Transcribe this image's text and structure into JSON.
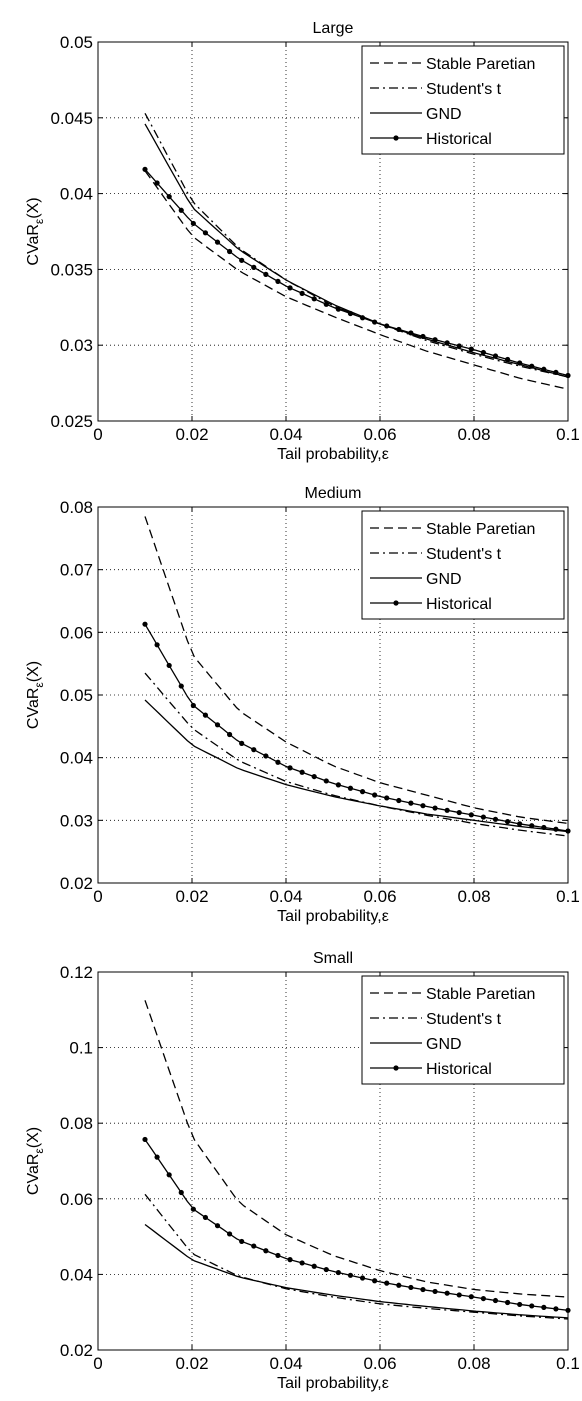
{
  "chart_data": [
    {
      "type": "line",
      "title": "Large",
      "xlabel": "Tail probability,ε",
      "ylabel_main": "CVaR",
      "ylabel_sub": "ε",
      "ylabel_tail": "(X)",
      "xlim": [
        0,
        0.1
      ],
      "ylim": [
        0.025,
        0.05
      ],
      "xticks": [
        0,
        0.02,
        0.04,
        0.06,
        0.08,
        0.1
      ],
      "xtick_labels": [
        "0",
        "0.02",
        "0.04",
        "0.06",
        "0.08",
        "0.1"
      ],
      "yticks": [
        0.025,
        0.03,
        0.035,
        0.04,
        0.045,
        0.05
      ],
      "ytick_labels": [
        "0.025",
        "0.03",
        "0.035",
        "0.04",
        "0.045",
        "0.05"
      ],
      "grid": true,
      "legend_position": "top-right",
      "x": [
        0.01,
        0.02,
        0.03,
        0.04,
        0.05,
        0.06,
        0.07,
        0.08,
        0.09,
        0.1
      ],
      "series": [
        {
          "name": "Stable Paretian",
          "style": "dashed",
          "markers": false,
          "values": [
            0.0415,
            0.0372,
            0.0349,
            0.0332,
            0.0319,
            0.0307,
            0.0296,
            0.0287,
            0.0278,
            0.0271
          ]
        },
        {
          "name": "Student's t",
          "style": "dashdot",
          "markers": false,
          "values": [
            0.0453,
            0.0395,
            0.0364,
            0.0343,
            0.0326,
            0.0314,
            0.0303,
            0.0294,
            0.0286,
            0.0279
          ]
        },
        {
          "name": "GND",
          "style": "solid",
          "markers": false,
          "values": [
            0.0446,
            0.0391,
            0.0363,
            0.0343,
            0.0327,
            0.0314,
            0.0304,
            0.0295,
            0.0287,
            0.0279
          ]
        },
        {
          "name": "Historical",
          "style": "solid",
          "markers": true,
          "values": [
            0.0416,
            0.0381,
            0.0357,
            0.0339,
            0.0325,
            0.0314,
            0.0305,
            0.0297,
            0.0288,
            0.028
          ]
        }
      ]
    },
    {
      "type": "line",
      "title": "Medium",
      "xlabel": "Tail probability,ε",
      "ylabel_main": "CVaR",
      "ylabel_sub": "ε",
      "ylabel_tail": "(X)",
      "xlim": [
        0,
        0.1
      ],
      "ylim": [
        0.02,
        0.08
      ],
      "xticks": [
        0,
        0.02,
        0.04,
        0.06,
        0.08,
        0.1
      ],
      "xtick_labels": [
        "0",
        "0.02",
        "0.04",
        "0.06",
        "0.08",
        "0.1"
      ],
      "yticks": [
        0.02,
        0.03,
        0.04,
        0.05,
        0.06,
        0.07,
        0.08
      ],
      "ytick_labels": [
        "0.02",
        "0.03",
        "0.04",
        "0.05",
        "0.06",
        "0.07",
        "0.08"
      ],
      "grid": true,
      "legend_position": "top-right",
      "x": [
        0.01,
        0.02,
        0.03,
        0.04,
        0.05,
        0.06,
        0.07,
        0.08,
        0.09,
        0.1
      ],
      "series": [
        {
          "name": "Stable Paretian",
          "style": "dashed",
          "markers": false,
          "values": [
            0.0785,
            0.0565,
            0.0475,
            0.0425,
            0.0387,
            0.036,
            0.034,
            0.032,
            0.0305,
            0.0295
          ]
        },
        {
          "name": "Student's t",
          "style": "dashdot",
          "markers": false,
          "values": [
            0.0535,
            0.0447,
            0.0395,
            0.0362,
            0.034,
            0.0323,
            0.0308,
            0.0295,
            0.0284,
            0.0275
          ]
        },
        {
          "name": "GND",
          "style": "solid",
          "markers": false,
          "values": [
            0.0492,
            0.042,
            0.0382,
            0.0357,
            0.0338,
            0.0323,
            0.031,
            0.03,
            0.029,
            0.0282
          ]
        },
        {
          "name": "Historical",
          "style": "solid",
          "markers": true,
          "values": [
            0.0613,
            0.0485,
            0.0425,
            0.0386,
            0.0359,
            0.0338,
            0.0322,
            0.0308,
            0.0294,
            0.0283
          ]
        }
      ]
    },
    {
      "type": "line",
      "title": "Small",
      "xlabel": "Tail probability,ε",
      "ylabel_main": "CVaR",
      "ylabel_sub": "ε",
      "ylabel_tail": "(X)",
      "xlim": [
        0,
        0.1
      ],
      "ylim": [
        0.02,
        0.12
      ],
      "xticks": [
        0,
        0.02,
        0.04,
        0.06,
        0.08,
        0.1
      ],
      "xtick_labels": [
        "0",
        "0.02",
        "0.04",
        "0.06",
        "0.08",
        "0.1"
      ],
      "yticks": [
        0.02,
        0.04,
        0.06,
        0.08,
        0.1,
        0.12
      ],
      "ytick_labels": [
        "0.02",
        "0.04",
        "0.06",
        "0.08",
        "0.1",
        "0.12"
      ],
      "grid": true,
      "legend_position": "top-right",
      "x": [
        0.01,
        0.02,
        0.03,
        0.04,
        0.05,
        0.06,
        0.07,
        0.08,
        0.09,
        0.1
      ],
      "series": [
        {
          "name": "Stable Paretian",
          "style": "dashed",
          "markers": false,
          "values": [
            0.1125,
            0.0765,
            0.059,
            0.0505,
            0.045,
            0.041,
            0.038,
            0.036,
            0.0348,
            0.034
          ]
        },
        {
          "name": "Student's t",
          "style": "dashdot",
          "markers": false,
          "values": [
            0.0612,
            0.0455,
            0.0395,
            0.0362,
            0.034,
            0.0322,
            0.031,
            0.03,
            0.029,
            0.0282
          ]
        },
        {
          "name": "GND",
          "style": "solid",
          "markers": false,
          "values": [
            0.0532,
            0.0438,
            0.0393,
            0.0365,
            0.0345,
            0.0328,
            0.0315,
            0.0303,
            0.0293,
            0.0285
          ]
        },
        {
          "name": "Historical",
          "style": "solid",
          "markers": true,
          "values": [
            0.0757,
            0.0575,
            0.049,
            0.0442,
            0.0408,
            0.038,
            0.0358,
            0.034,
            0.032,
            0.0305
          ]
        }
      ]
    }
  ]
}
